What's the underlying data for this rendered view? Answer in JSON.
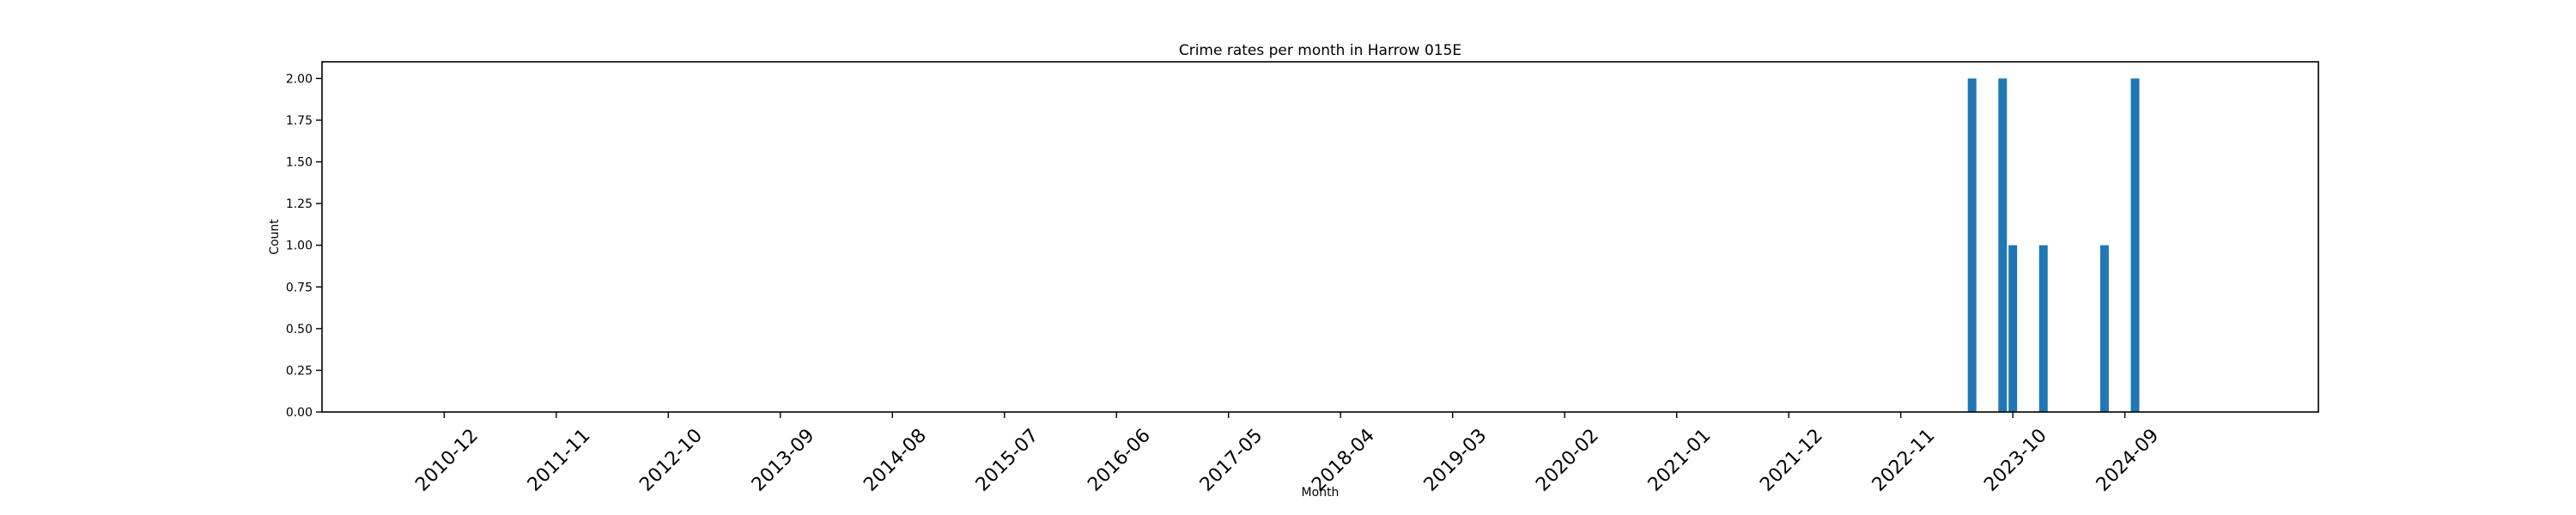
{
  "chart_data": {
    "type": "bar",
    "title": "Crime rates per month in Harrow 015E",
    "xlabel": "Month",
    "ylabel": "Count",
    "ylim": [
      0,
      2.1
    ],
    "yticks": [
      0.0,
      0.25,
      0.5,
      0.75,
      1.0,
      1.25,
      1.5,
      1.75,
      2.0
    ],
    "ytick_labels": [
      "0.00",
      "0.25",
      "0.50",
      "0.75",
      "1.00",
      "1.25",
      "1.50",
      "1.75",
      "2.00"
    ],
    "xlim": [
      "2009-12",
      "2026-04"
    ],
    "xticks": [
      "2010-12",
      "2011-11",
      "2012-10",
      "2013-09",
      "2014-08",
      "2015-07",
      "2016-06",
      "2017-05",
      "2018-04",
      "2019-03",
      "2020-02",
      "2021-01",
      "2021-12",
      "2022-11",
      "2023-10",
      "2024-09"
    ],
    "grid": false,
    "legend": false,
    "bar_color": "#1f77b4",
    "categories": [
      "2023-06",
      "2023-09",
      "2023-10",
      "2024-01",
      "2024-07",
      "2024-10"
    ],
    "values": [
      2,
      2,
      1,
      1,
      1,
      2
    ]
  }
}
